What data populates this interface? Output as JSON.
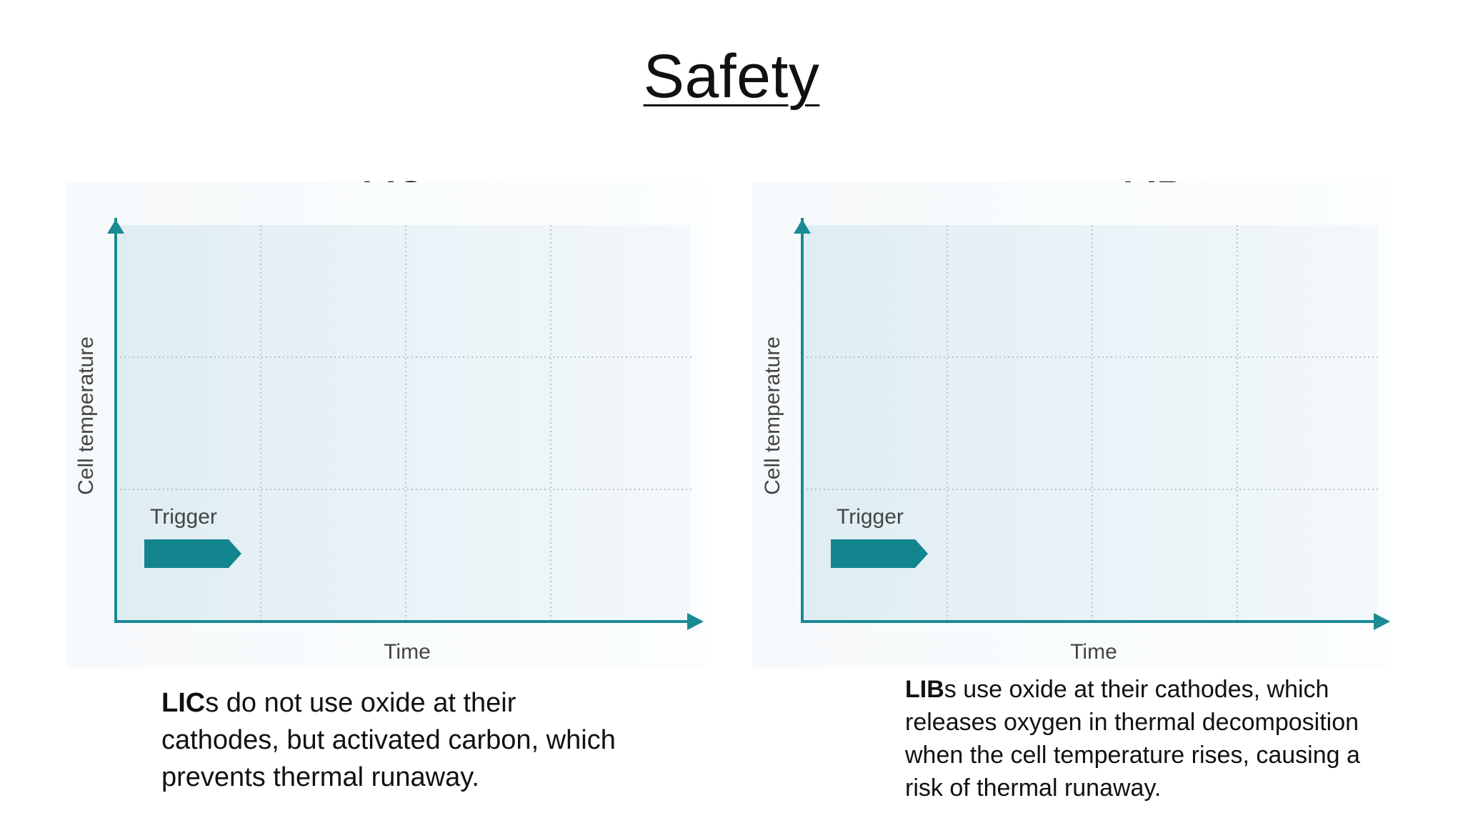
{
  "slide": {
    "title": "Safety"
  },
  "panels": [
    {
      "title": "LIC",
      "y_axis_label": "Cell temperature",
      "x_axis_label": "Time",
      "trigger_label": "Trigger",
      "description_bold": "LIC",
      "description_rest": "s do not use oxide at their cathodes, but activated carbon, which prevents thermal runaway."
    },
    {
      "title": "LIB",
      "y_axis_label": "Cell temperature",
      "x_axis_label": "Time",
      "trigger_label": "Trigger",
      "description_bold": "LIB",
      "description_rest": "s use oxide at their cathodes, which releases oxygen in thermal decomposition when the cell temperature rises, causing a risk of thermal runaway."
    }
  ],
  "colors": {
    "axis": "#1a8a93",
    "trigger_arrow": "#13858e",
    "plot_bg": "#e6f1f6",
    "grid": "#b8c3c8"
  }
}
